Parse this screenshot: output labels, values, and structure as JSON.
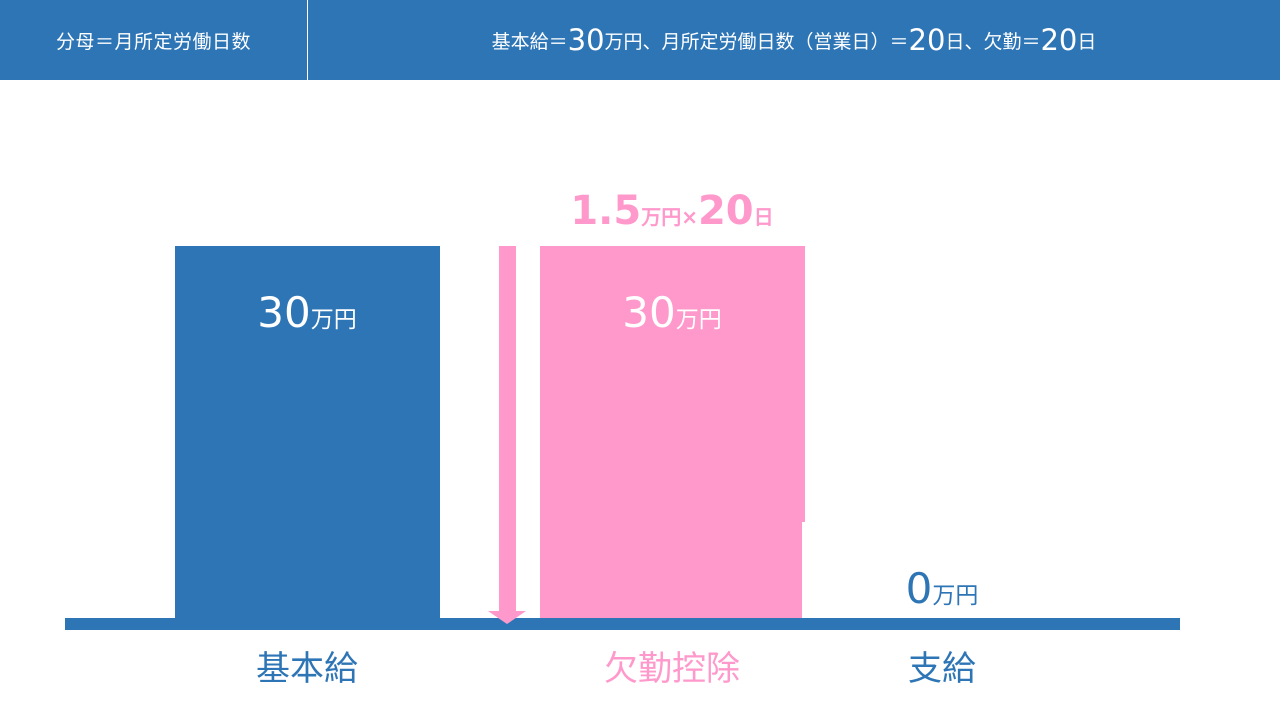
{
  "header": {
    "left_text": "分母＝月所定労働日数",
    "right_parts": [
      {
        "text": "基本給＝",
        "big": false
      },
      {
        "text": "30",
        "big": true
      },
      {
        "text": "万円、月所定労働日数（営業日）＝",
        "big": false
      },
      {
        "text": "20",
        "big": true
      },
      {
        "text": "日、欠勤＝",
        "big": false
      },
      {
        "text": "20",
        "big": true
      },
      {
        "text": "日",
        "big": false
      }
    ]
  },
  "formula": {
    "rate": "1.5",
    "rate_unit": "万円",
    "times": "×",
    "days": "20",
    "days_unit": "日"
  },
  "chart_data": {
    "type": "bar",
    "categories": [
      "基本給",
      "欠勤控除",
      "支給"
    ],
    "values": [
      30,
      30,
      0
    ],
    "value_labels": [
      {
        "num": "30",
        "unit": "万円"
      },
      {
        "num": "30",
        "unit": "万円"
      },
      {
        "num": "0",
        "unit": "万円"
      }
    ],
    "unit": "万円",
    "ylim": [
      0,
      30
    ],
    "colors": {
      "base": "#2e75b6",
      "deduction": "#ff99cc",
      "axis": "#2e75b6",
      "arrow": "#ff99cc"
    }
  }
}
